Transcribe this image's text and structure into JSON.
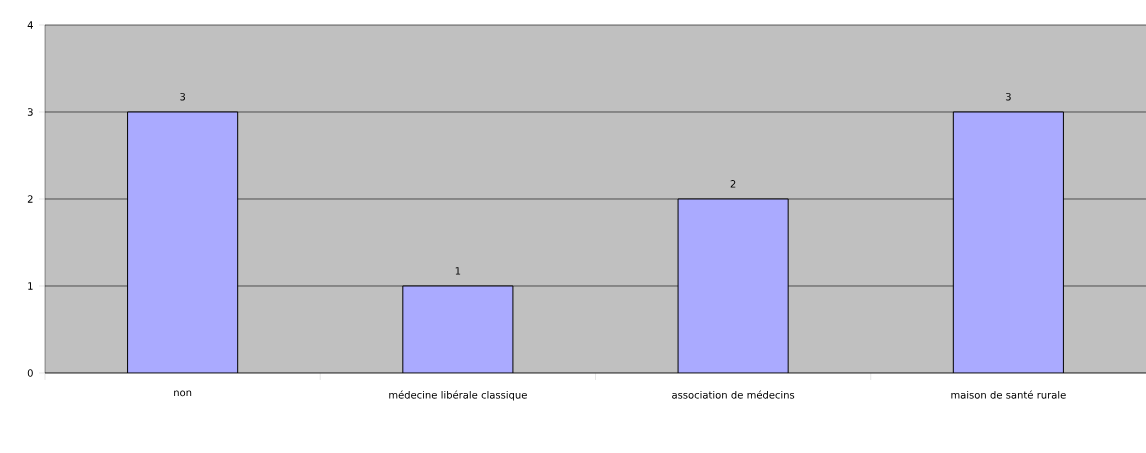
{
  "chart_data": {
    "type": "bar",
    "categories": [
      "non",
      "médecine libérale classique",
      "association de médecins",
      "maison de santé rurale"
    ],
    "values": [
      3,
      1,
      2,
      3
    ],
    "color": "#aaaaff",
    "ylim": [
      0,
      4
    ],
    "yticks": [
      0,
      1,
      2,
      3,
      4
    ],
    "grid": "y",
    "data_labels": true
  }
}
